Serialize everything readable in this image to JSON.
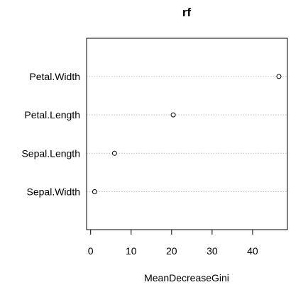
{
  "chart_data": {
    "type": "scatter",
    "title": "rf",
    "xlabel": "MeanDecreaseGini",
    "ylabel": "",
    "categories": [
      "Sepal.Width",
      "Sepal.Length",
      "Petal.Length",
      "Petal.Width"
    ],
    "values": [
      1.0,
      5.9,
      20.4,
      46.5
    ],
    "xlim": [
      -1.0,
      48.6
    ],
    "xticks": [
      0,
      10,
      20,
      30,
      40
    ],
    "grid": "dotted horizontal lines per category",
    "legend": "none",
    "colors": {
      "point_stroke": "#000000",
      "gridline": "#bebebe",
      "frame": "#000000"
    }
  }
}
